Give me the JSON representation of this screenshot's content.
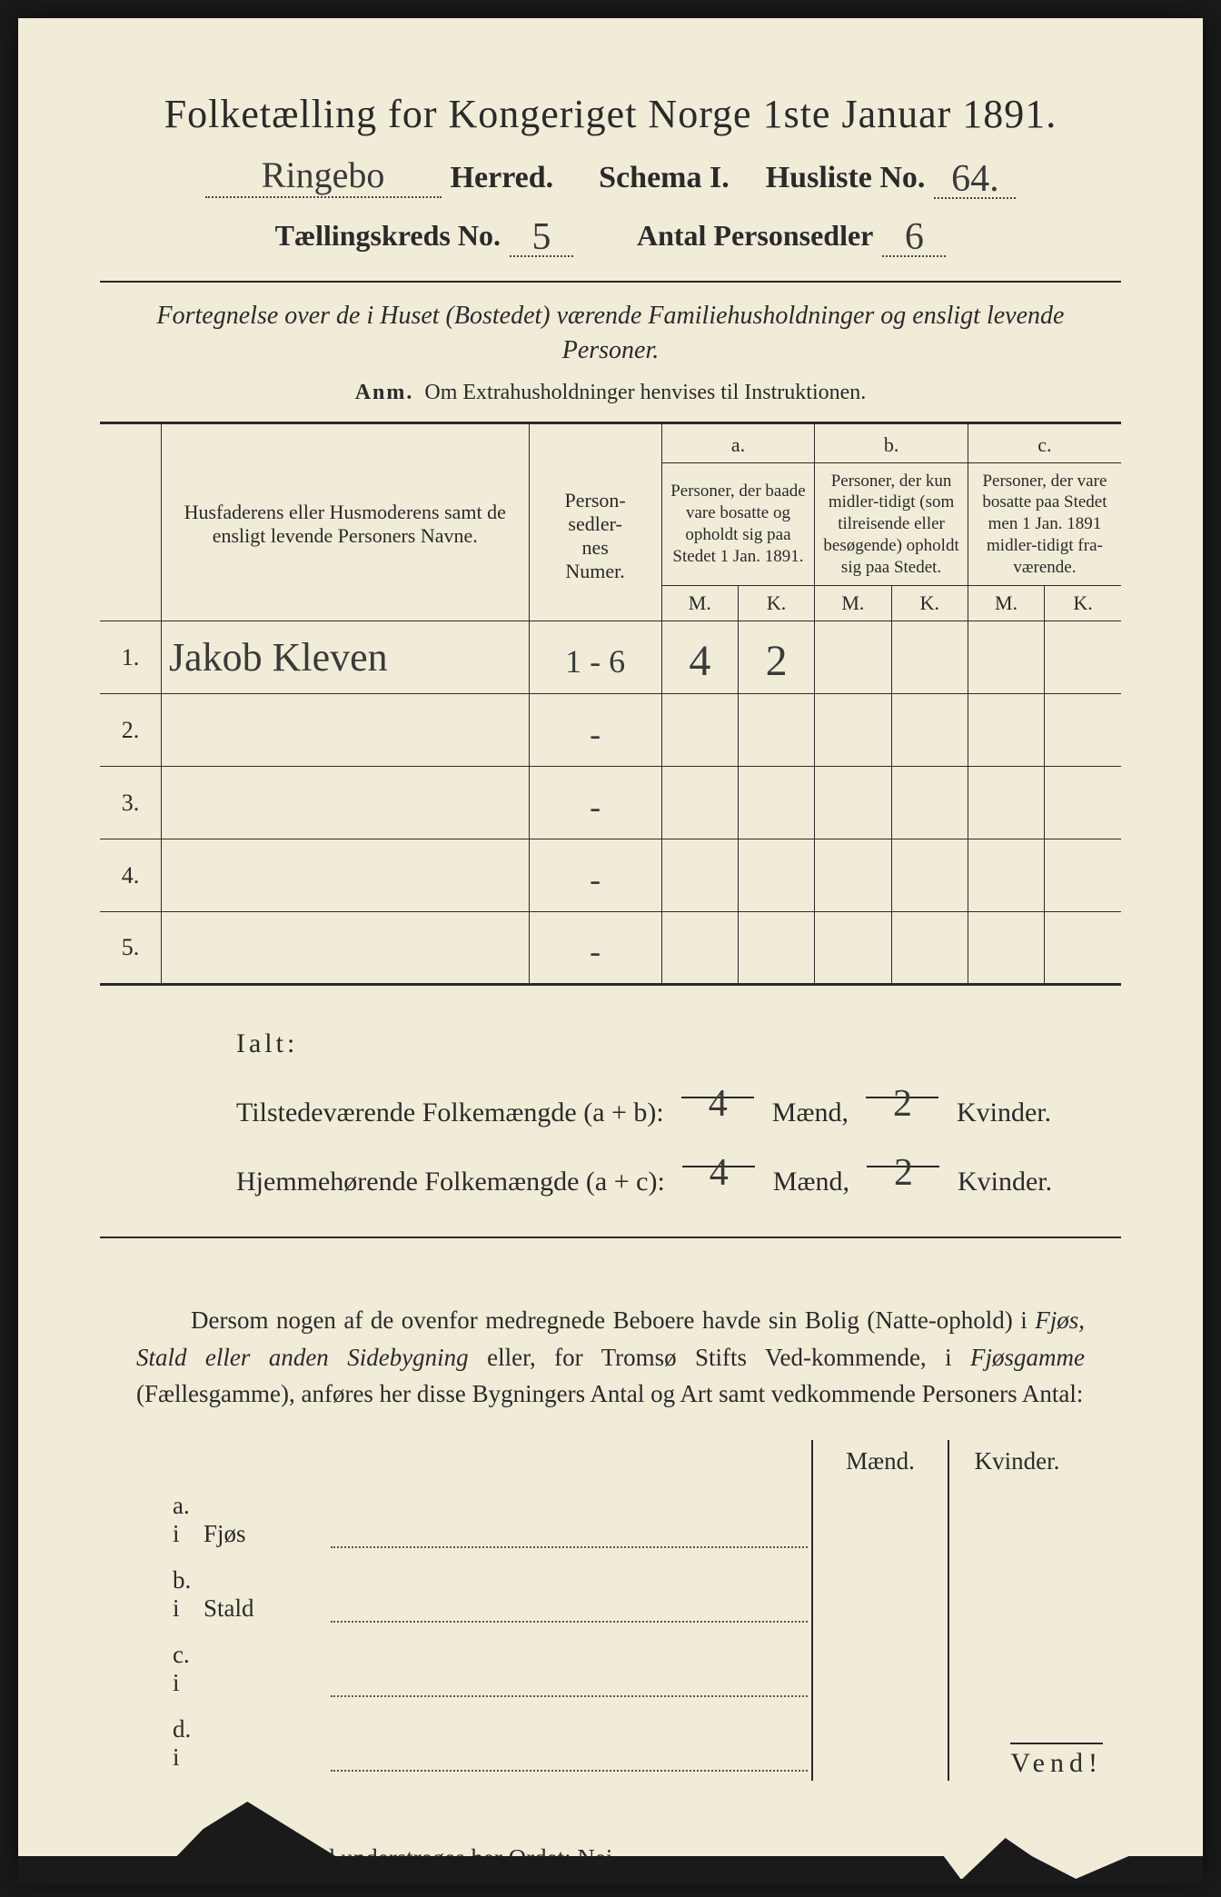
{
  "header": {
    "title": "Folketælling for Kongeriget Norge 1ste Januar 1891.",
    "herred_value": "Ringebo",
    "herred_label": "Herred.",
    "schema_label": "Schema I.",
    "husliste_label": "Husliste No.",
    "husliste_value": "64.",
    "kreds_label": "Tællingskreds No.",
    "kreds_value": "5",
    "sedler_label": "Antal Personsedler",
    "sedler_value": "6"
  },
  "subtitle": "Fortegnelse over de i Huset (Bostedet) værende Familiehusholdninger og ensligt levende Personer.",
  "anm_label": "Anm.",
  "anm_text": "Om Extrahusholdninger henvises til Instruktionen.",
  "table": {
    "col_names": "Husfaderens eller Husmoderens samt de ensligt levende Personers Navne.",
    "col_numer": "Person-\nsedler-\nnes\nNumer.",
    "a_label": "a.",
    "b_label": "b.",
    "c_label": "c.",
    "a_desc": "Personer, der baade vare bosatte og opholdt sig paa Stedet 1 Jan. 1891.",
    "b_desc": "Personer, der kun midler-tidigt (som tilreisende eller besøgende) opholdt sig paa Stedet.",
    "c_desc": "Personer, der vare bosatte paa Stedet men 1 Jan. 1891 midler-tidigt fra-værende.",
    "m": "M.",
    "k": "K.",
    "rows": [
      {
        "n": "1.",
        "name": "Jakob Kleven",
        "numer": "1 - 6",
        "am": "4",
        "ak": "2",
        "bm": "",
        "bk": "",
        "cm": "",
        "ck": ""
      },
      {
        "n": "2.",
        "name": "",
        "numer": "-",
        "am": "",
        "ak": "",
        "bm": "",
        "bk": "",
        "cm": "",
        "ck": ""
      },
      {
        "n": "3.",
        "name": "",
        "numer": "-",
        "am": "",
        "ak": "",
        "bm": "",
        "bk": "",
        "cm": "",
        "ck": ""
      },
      {
        "n": "4.",
        "name": "",
        "numer": "-",
        "am": "",
        "ak": "",
        "bm": "",
        "bk": "",
        "cm": "",
        "ck": ""
      },
      {
        "n": "5.",
        "name": "",
        "numer": "-",
        "am": "",
        "ak": "",
        "bm": "",
        "bk": "",
        "cm": "",
        "ck": ""
      }
    ]
  },
  "ialt": {
    "label": "Ialt:",
    "line1_pre": "Tilstedeværende Folkemængde (a + b):",
    "line2_pre": "Hjemmehørende Folkemængde (a + c):",
    "maend": "Mænd,",
    "kvinder": "Kvinder.",
    "v1m": "4",
    "v1k": "2",
    "v2m": "4",
    "v2k": "2"
  },
  "para": "Dersom nogen af de ovenfor medregnede Beboere havde sin Bolig (Natte-ophold) i Fjøs, Stald eller anden Sidebygning eller, for Tromsø Stifts Ved-kommende, i Fjøsgamme (Fællesgamme), anføres her disse Bygningers Antal og Art samt vedkommende Personers Antal:",
  "side": {
    "maend": "Mænd.",
    "kvinder": "Kvinder.",
    "rows": [
      {
        "lab": "a.  i",
        "bld": "Fjøs"
      },
      {
        "lab": "b.  i",
        "bld": "Stald"
      },
      {
        "lab": "c.  i",
        "bld": ""
      },
      {
        "lab": "d.  i",
        "bld": ""
      }
    ]
  },
  "modsat_pre": "I modsat Fald understreges her Ordet:",
  "modsat_nei": "Nei.",
  "vend": "Vend!",
  "colors": {
    "paper": "#f0ecd8",
    "ink": "#2a2a2a",
    "background": "#1a1a1a"
  }
}
